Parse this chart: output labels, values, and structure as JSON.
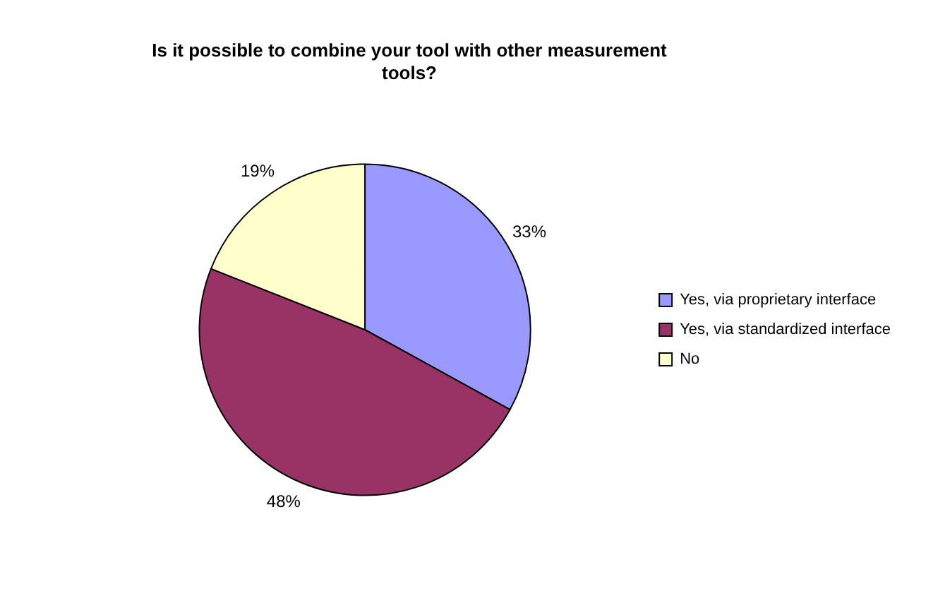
{
  "chart_data": {
    "type": "pie",
    "title": "Is it possible to combine your tool with other measurement tools?",
    "categories": [
      "Yes, via proprietary interface",
      "Yes, via standardized interface",
      "No"
    ],
    "values": [
      33,
      48,
      19
    ],
    "colors": [
      "#9999ff",
      "#993366",
      "#ffffcc"
    ],
    "value_labels": [
      "33%",
      "48%",
      "19%"
    ],
    "legend": "right"
  }
}
